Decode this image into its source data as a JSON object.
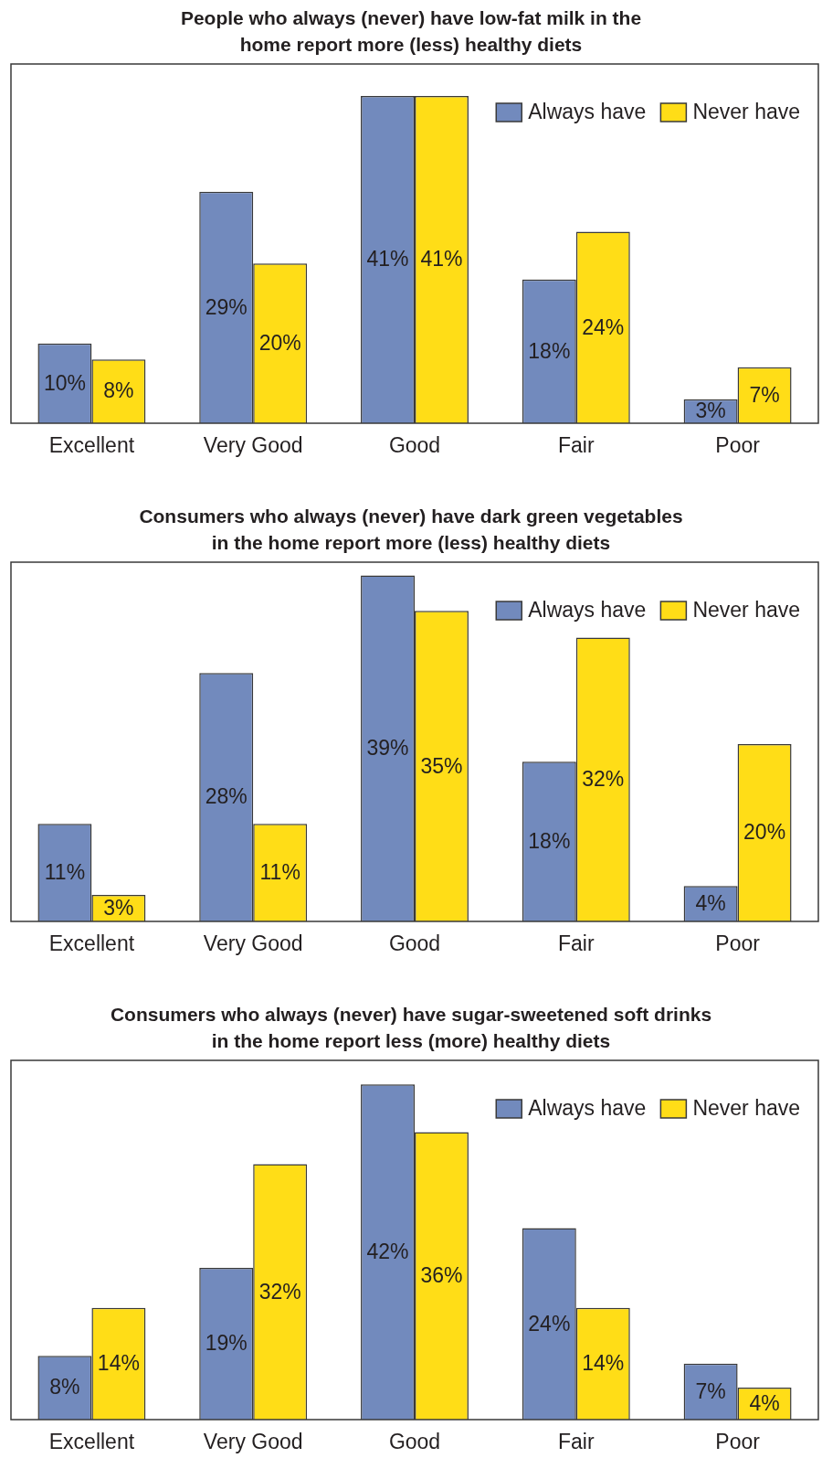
{
  "chart_data": [
    {
      "type": "bar",
      "title": "People who always (never) have low-fat milk in the\nhome report more (less) healthy diets",
      "categories": [
        "Excellent",
        "Very Good",
        "Good",
        "Fair",
        "Poor"
      ],
      "series": [
        {
          "name": "Always have",
          "color": "#728abd",
          "values": [
            10,
            29,
            41,
            18,
            3
          ],
          "value_labels": [
            "10%",
            "29%",
            "41%",
            "18%",
            "3%"
          ]
        },
        {
          "name": "Never have",
          "color": "#ffdd17",
          "values": [
            8,
            20,
            41,
            24,
            7
          ],
          "value_labels": [
            "8%",
            "20%",
            "41%",
            "24%",
            "7%"
          ]
        }
      ],
      "ylim": [
        0,
        45
      ],
      "legend": "top right",
      "tick_labels": "x"
    },
    {
      "type": "bar",
      "title": "Consumers who always (never) have dark green vegetables\nin the home report more (less) healthy diets",
      "categories": [
        "Excellent",
        "Very Good",
        "Good",
        "Fair",
        "Poor"
      ],
      "series": [
        {
          "name": "Always have",
          "color": "#728abd",
          "values": [
            11,
            28,
            39,
            18,
            4
          ],
          "value_labels": [
            "11%",
            "28%",
            "39%",
            "18%",
            "4%"
          ]
        },
        {
          "name": "Never have",
          "color": "#ffdd17",
          "values": [
            3,
            11,
            35,
            32,
            20
          ],
          "value_labels": [
            "3%",
            "11%",
            "35%",
            "32%",
            "20%"
          ]
        }
      ],
      "ylim": [
        0,
        40.5
      ],
      "legend": "top right",
      "tick_labels": "x"
    },
    {
      "type": "bar",
      "title": "Consumers who always (never) have sugar-sweetened soft drinks\nin the home report less (more) healthy diets",
      "categories": [
        "Excellent",
        "Very Good",
        "Good",
        "Fair",
        "Poor"
      ],
      "series": [
        {
          "name": "Always have",
          "color": "#728abd",
          "values": [
            8,
            19,
            42,
            24,
            7
          ],
          "value_labels": [
            "8%",
            "19%",
            "42%",
            "24%",
            "7%"
          ]
        },
        {
          "name": "Never have",
          "color": "#ffdd17",
          "values": [
            14,
            32,
            36,
            14,
            4
          ],
          "value_labels": [
            "14%",
            "32%",
            "36%",
            "14%",
            "4%"
          ]
        }
      ],
      "ylim": [
        0,
        45
      ],
      "legend": "top right",
      "tick_labels": "x"
    }
  ]
}
